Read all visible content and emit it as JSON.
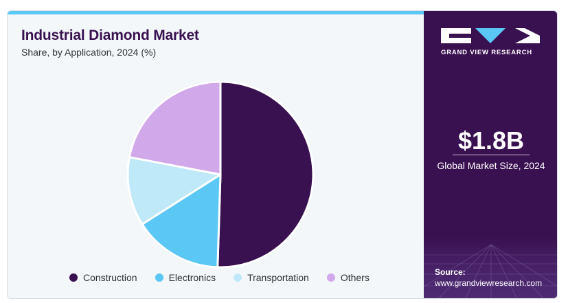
{
  "chart_data": {
    "type": "pie",
    "title": "Industrial Diamond Market",
    "subtitle": "Share, by Application, 2024 (%)",
    "categories": [
      "Construction",
      "Electronics",
      "Transportation",
      "Others"
    ],
    "values": [
      50.5,
      15.5,
      12.0,
      22.0
    ],
    "colors": [
      "#3a1150",
      "#5bc7f5",
      "#bfe9f9",
      "#d1a8ea"
    ],
    "legend_position": "bottom"
  },
  "brand": {
    "name": "GRAND VIEW RESEARCH",
    "accent": "#5bc7f5",
    "panel_color": "#3a1150"
  },
  "market": {
    "size": "$1.8B",
    "label": "Global Market Size, 2024"
  },
  "source": {
    "label": "Source:",
    "url": "www.grandviewresearch.com"
  }
}
